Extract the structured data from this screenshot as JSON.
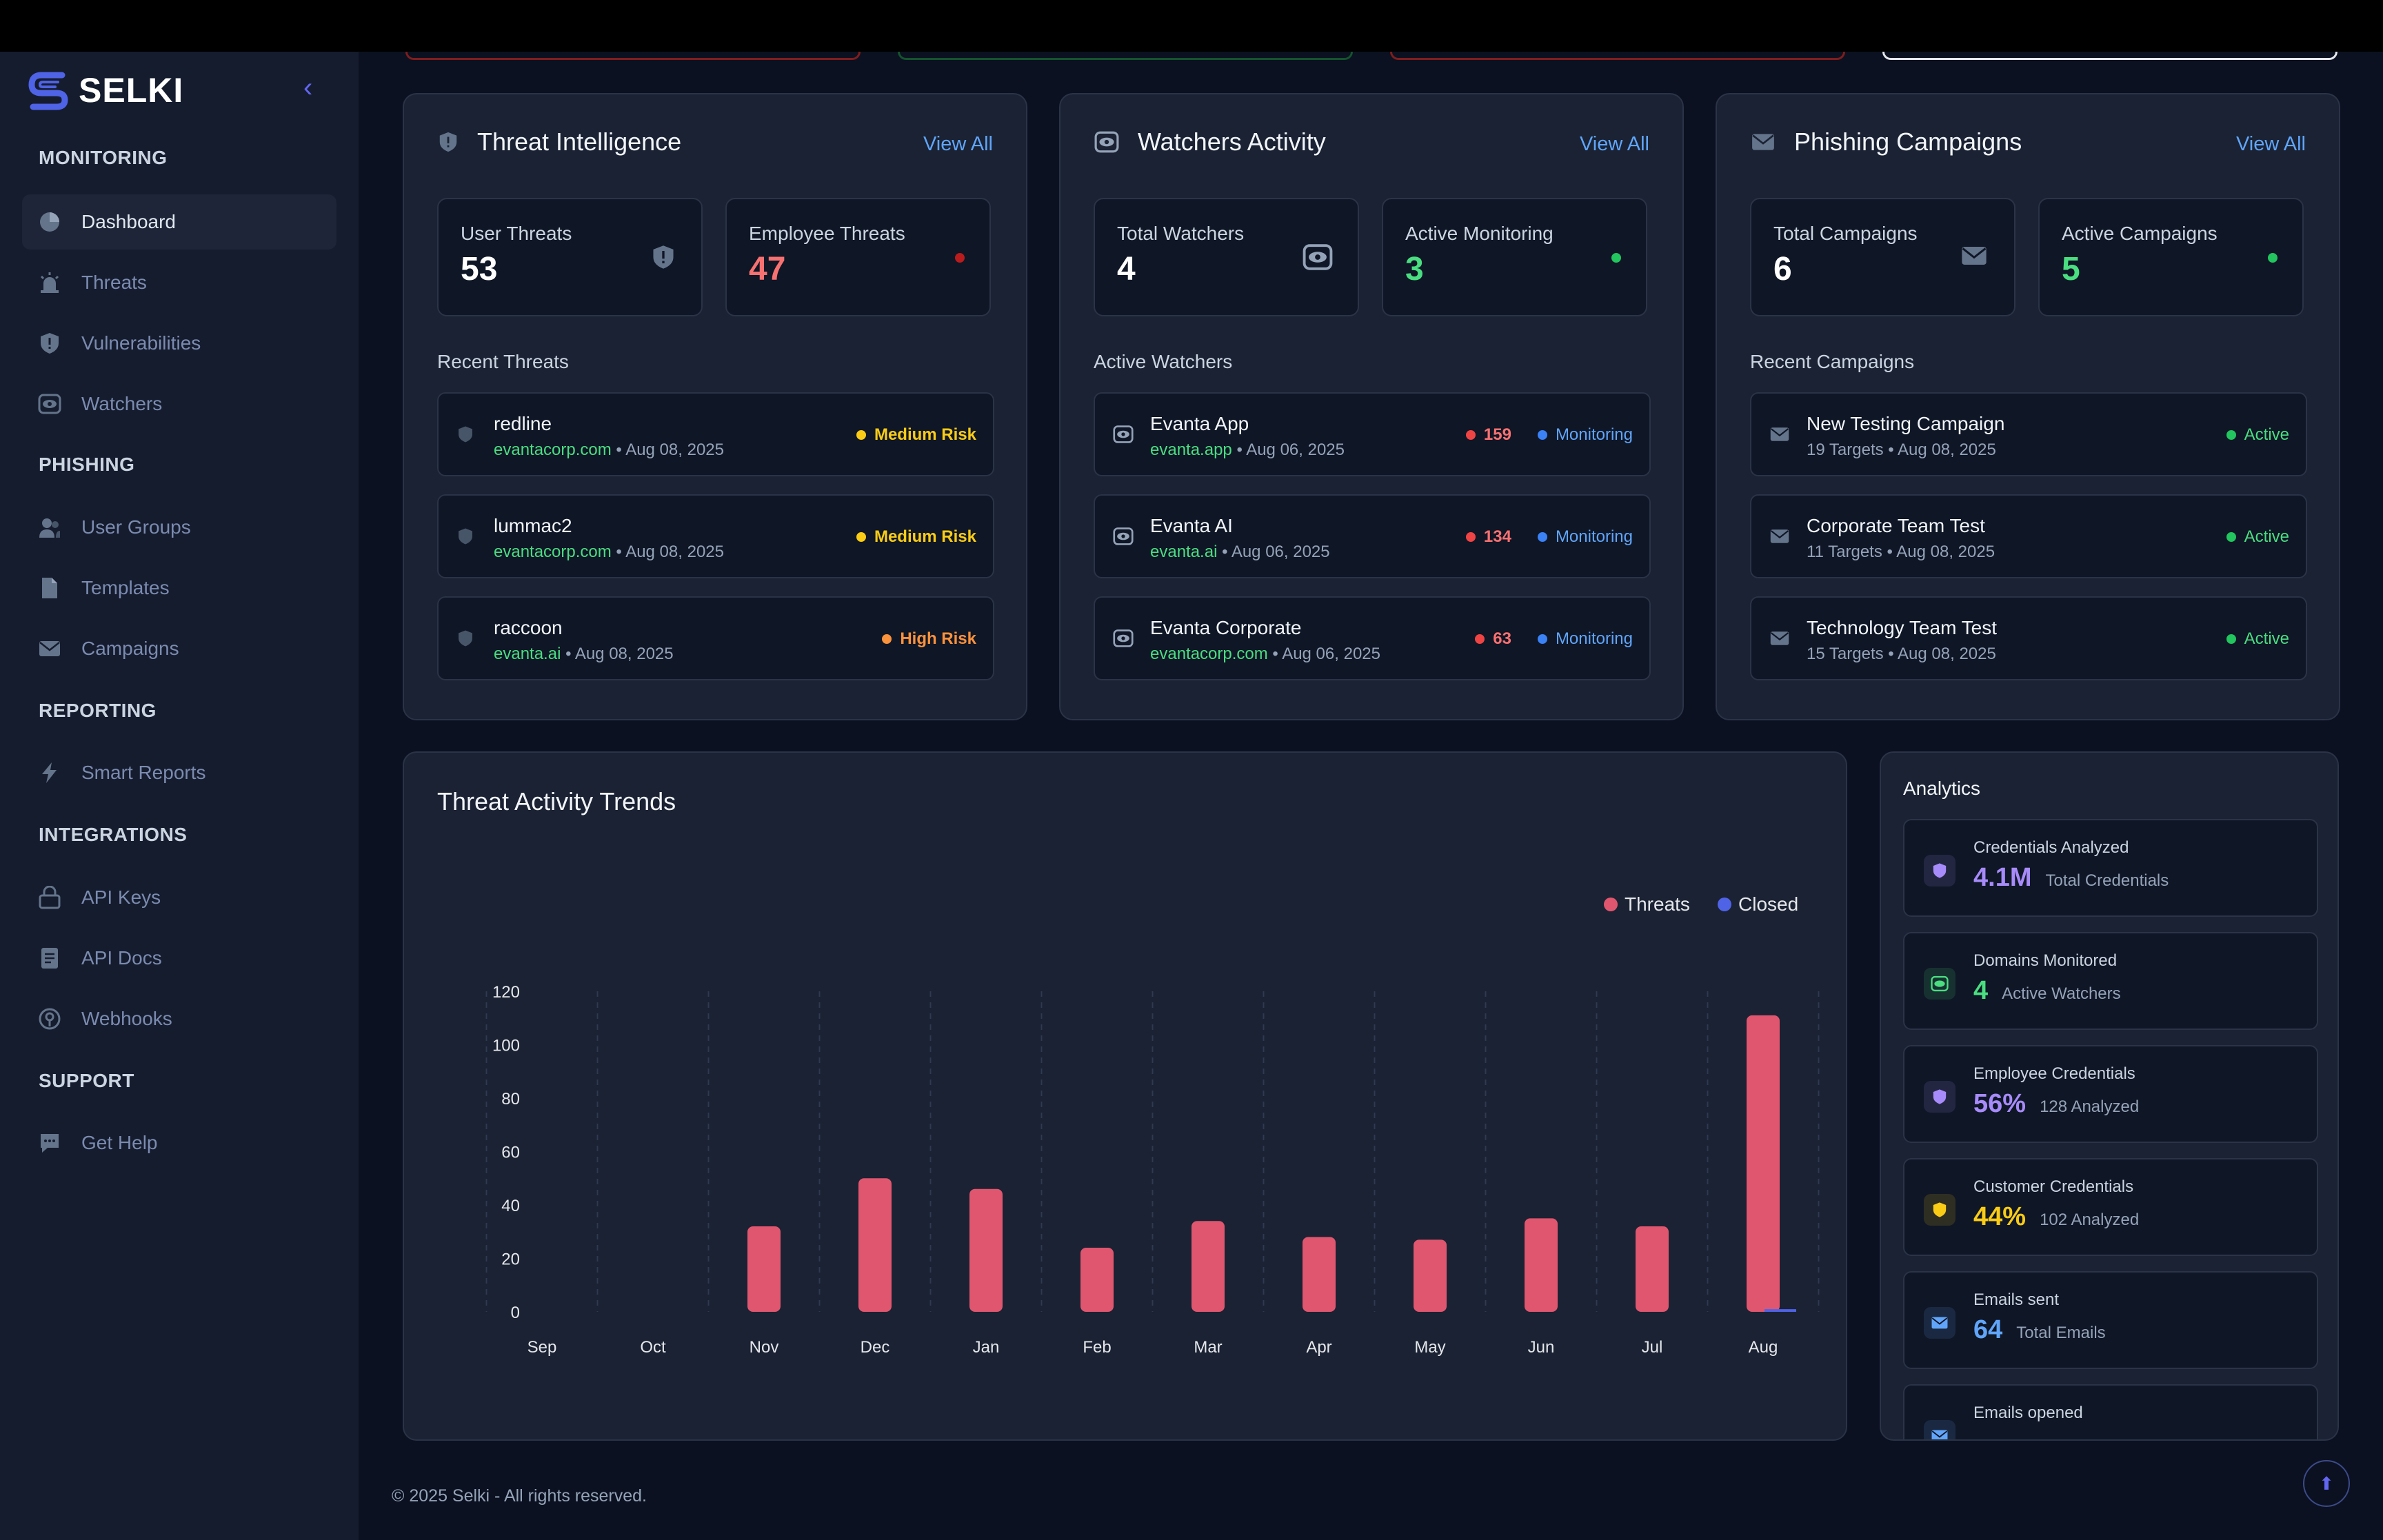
{
  "app": {
    "name": "SELKI"
  },
  "sidebar": {
    "sections": [
      {
        "title": "MONITORING",
        "items": [
          {
            "label": "Dashboard",
            "icon": "pie-chart-icon",
            "active": true
          },
          {
            "label": "Threats",
            "icon": "siren-icon"
          },
          {
            "label": "Vulnerabilities",
            "icon": "shield-alert-icon"
          },
          {
            "label": "Watchers",
            "icon": "eye-icon"
          }
        ]
      },
      {
        "title": "PHISHING",
        "items": [
          {
            "label": "User Groups",
            "icon": "users-icon"
          },
          {
            "label": "Templates",
            "icon": "file-icon"
          },
          {
            "label": "Campaigns",
            "icon": "mail-icon"
          }
        ]
      },
      {
        "title": "REPORTING",
        "items": [
          {
            "label": "Smart Reports",
            "icon": "bolt-icon"
          }
        ]
      },
      {
        "title": "INTEGRATIONS",
        "items": [
          {
            "label": "API Keys",
            "icon": "lock-icon"
          },
          {
            "label": "API Docs",
            "icon": "document-icon"
          },
          {
            "label": "Webhooks",
            "icon": "webhook-icon"
          }
        ]
      },
      {
        "title": "SUPPORT",
        "items": [
          {
            "label": "Get Help",
            "icon": "chat-icon"
          }
        ]
      }
    ]
  },
  "threat_intel": {
    "title": "Threat Intelligence",
    "view_all": "View All",
    "stats": [
      {
        "label": "User Threats",
        "value": "53"
      },
      {
        "label": "Employee Threats",
        "value": "47"
      }
    ],
    "subhead": "Recent Threats",
    "rows": [
      {
        "name": "redline",
        "domain": "evantacorp.com",
        "date": "Aug 08, 2025",
        "badge": "Medium Risk",
        "color": "#facc15"
      },
      {
        "name": "lummac2",
        "domain": "evantacorp.com",
        "date": "Aug 08, 2025",
        "badge": "Medium Risk",
        "color": "#facc15"
      },
      {
        "name": "raccoon",
        "domain": "evanta.ai",
        "date": "Aug 08, 2025",
        "badge": "High Risk",
        "color": "#fb923c"
      }
    ]
  },
  "watchers": {
    "title": "Watchers Activity",
    "view_all": "View All",
    "stats": [
      {
        "label": "Total Watchers",
        "value": "4"
      },
      {
        "label": "Active Monitoring",
        "value": "3"
      }
    ],
    "subhead": "Active Watchers",
    "rows": [
      {
        "name": "Evanta App",
        "domain": "evanta.app",
        "date": "Aug 06, 2025",
        "count": "159",
        "status": "Monitoring"
      },
      {
        "name": "Evanta AI",
        "domain": "evanta.ai",
        "date": "Aug 06, 2025",
        "count": "134",
        "status": "Monitoring"
      },
      {
        "name": "Evanta Corporate",
        "domain": "evantacorp.com",
        "date": "Aug 06, 2025",
        "count": "63",
        "status": "Monitoring"
      }
    ]
  },
  "phishing": {
    "title": "Phishing Campaigns",
    "view_all": "View All",
    "stats": [
      {
        "label": "Total Campaigns",
        "value": "6"
      },
      {
        "label": "Active Campaigns",
        "value": "5"
      }
    ],
    "subhead": "Recent Campaigns",
    "rows": [
      {
        "name": "New Testing Campaign",
        "meta": "19 Targets • Aug 08, 2025",
        "status": "Active"
      },
      {
        "name": "Corporate Team Test",
        "meta": "11 Targets • Aug 08, 2025",
        "status": "Active"
      },
      {
        "name": "Technology Team Test",
        "meta": "15 Targets • Aug 08, 2025",
        "status": "Active"
      }
    ]
  },
  "chart_title": "Threat Activity Trends",
  "chart_data": {
    "type": "bar",
    "title": "Threat Activity Trends",
    "categories": [
      "Sep",
      "Oct",
      "Nov",
      "Dec",
      "Jan",
      "Feb",
      "Mar",
      "Apr",
      "May",
      "Jun",
      "Jul",
      "Aug"
    ],
    "series": [
      {
        "name": "Threats",
        "color": "#e0566f",
        "values": [
          0,
          0,
          32,
          50,
          46,
          24,
          34,
          28,
          27,
          35,
          32,
          111
        ]
      },
      {
        "name": "Closed",
        "color": "#4f63e7",
        "values": [
          0,
          0,
          0,
          0,
          0,
          0,
          0,
          0,
          0,
          0,
          0,
          1
        ]
      }
    ],
    "yticks": [
      "0",
      "20",
      "40",
      "60",
      "80",
      "100",
      "120"
    ],
    "ylim": [
      0,
      120
    ],
    "legend": "top-right",
    "grid": "vertical dashed"
  },
  "analytics": {
    "title": "Analytics",
    "items": [
      {
        "label": "Credentials Analyzed",
        "value": "4.1M",
        "sub": "Total Credentials",
        "color": "#a78bfa",
        "icon": "shield-icon"
      },
      {
        "label": "Domains Monitored",
        "value": "4",
        "sub": "Active Watchers",
        "color": "#4ade80",
        "icon": "eye-icon"
      },
      {
        "label": "Employee Credentials",
        "value": "56%",
        "sub": "128 Analyzed",
        "color": "#a78bfa",
        "icon": "shield-icon"
      },
      {
        "label": "Customer Credentials",
        "value": "44%",
        "sub": "102 Analyzed",
        "color": "#facc15",
        "icon": "shield-icon"
      },
      {
        "label": "Emails sent",
        "value": "64",
        "sub": "Total Emails",
        "color": "#60a5fa",
        "icon": "mail-icon"
      },
      {
        "label": "Emails opened",
        "value": "",
        "sub": "",
        "color": "#60a5fa",
        "icon": "mail-icon"
      }
    ]
  },
  "footer": "© 2025 Selki - All rights reserved."
}
